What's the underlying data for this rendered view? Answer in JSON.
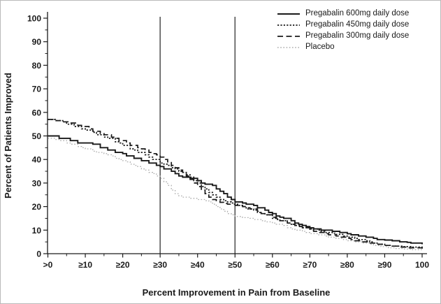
{
  "chart_data": {
    "type": "line",
    "subtype": "step-after-responder-curves",
    "title": "",
    "xlabel": "Percent Improvement in Pain from Baseline",
    "ylabel": "Percent of Patients Improved",
    "xlim": [
      0,
      100
    ],
    "ylim": [
      0,
      100
    ],
    "grid": "off",
    "legend_position": "top-right",
    "x_major_ticks": [
      0,
      10,
      20,
      30,
      40,
      50,
      60,
      70,
      80,
      90,
      100
    ],
    "x_minor_ticks": [
      5,
      15,
      25,
      35,
      45,
      55,
      65,
      75,
      85,
      95
    ],
    "x_tick_labels": [
      ">0",
      "≥10",
      "≥20",
      "≥30",
      "≥40",
      "≥50",
      "≥60",
      "≥70",
      "≥80",
      "≥90",
      "100"
    ],
    "y_major_ticks": [
      0,
      10,
      20,
      30,
      40,
      50,
      60,
      70,
      80,
      90,
      100
    ],
    "y_minor_ticks": [
      5,
      15,
      25,
      35,
      45,
      55,
      65,
      75,
      85,
      95
    ],
    "y_tick_labels": [
      "0",
      "10",
      "20",
      "30",
      "40",
      "50",
      "60",
      "70",
      "80",
      "90",
      "100"
    ],
    "reference_lines_x": [
      30,
      50
    ],
    "reference_line_color": "#4d4d4d",
    "series": [
      {
        "name": "Pregabalin 600mg daily dose",
        "style": "solid",
        "color": "#1a1a1a",
        "dash": "",
        "width": 1.9,
        "points": [
          [
            0,
            50
          ],
          [
            3,
            49
          ],
          [
            6,
            48
          ],
          [
            8,
            47
          ],
          [
            12,
            46.5
          ],
          [
            14,
            45
          ],
          [
            16,
            44
          ],
          [
            18,
            43
          ],
          [
            20,
            42.5
          ],
          [
            21,
            41.5
          ],
          [
            23,
            40.5
          ],
          [
            25,
            39.5
          ],
          [
            27,
            38.5
          ],
          [
            29,
            37.5
          ],
          [
            30,
            37
          ],
          [
            31,
            36
          ],
          [
            33,
            35
          ],
          [
            34,
            34
          ],
          [
            35,
            33
          ],
          [
            36,
            32.5
          ],
          [
            38,
            32
          ],
          [
            40,
            31
          ],
          [
            41,
            30
          ],
          [
            42,
            29.5
          ],
          [
            44,
            29
          ],
          [
            45,
            27.5
          ],
          [
            46,
            26.5
          ],
          [
            47,
            25.5
          ],
          [
            48,
            24
          ],
          [
            49,
            23
          ],
          [
            50,
            22
          ],
          [
            52,
            21.5
          ],
          [
            53,
            21
          ],
          [
            55,
            20.5
          ],
          [
            56,
            19.5
          ],
          [
            58,
            18.5
          ],
          [
            59,
            17.5
          ],
          [
            60,
            17
          ],
          [
            61,
            16
          ],
          [
            62,
            15.5
          ],
          [
            63,
            15
          ],
          [
            65,
            14
          ],
          [
            66,
            13
          ],
          [
            67,
            12.5
          ],
          [
            68,
            12
          ],
          [
            69,
            11.5
          ],
          [
            70,
            11
          ],
          [
            71,
            10.5
          ],
          [
            73,
            10
          ],
          [
            76,
            9.5
          ],
          [
            78,
            9
          ],
          [
            80,
            8.5
          ],
          [
            81,
            8
          ],
          [
            83,
            7.5
          ],
          [
            85,
            7
          ],
          [
            87,
            6.5
          ],
          [
            88,
            6
          ],
          [
            90,
            5.8
          ],
          [
            92,
            5.5
          ],
          [
            94,
            5
          ],
          [
            96,
            4.8
          ],
          [
            97,
            4.5
          ],
          [
            100,
            4
          ]
        ]
      },
      {
        "name": "Pregabalin 450mg daily dose",
        "style": "dotted",
        "color": "#1a1a1a",
        "dash": "2.2 2.2",
        "width": 1.7,
        "points": [
          [
            0,
            57
          ],
          [
            2,
            56.5
          ],
          [
            4,
            56
          ],
          [
            5,
            55
          ],
          [
            7,
            54
          ],
          [
            9,
            53
          ],
          [
            10,
            52.5
          ],
          [
            12,
            51.5
          ],
          [
            13,
            50.5
          ],
          [
            15,
            49.5
          ],
          [
            16,
            49
          ],
          [
            18,
            47.5
          ],
          [
            19,
            47
          ],
          [
            20,
            46
          ],
          [
            22,
            44.5
          ],
          [
            23,
            44
          ],
          [
            24,
            43
          ],
          [
            26,
            42
          ],
          [
            27,
            41
          ],
          [
            28,
            40
          ],
          [
            30,
            38.5
          ],
          [
            31,
            38
          ],
          [
            32,
            37.5
          ],
          [
            33,
            36.5
          ],
          [
            34,
            36
          ],
          [
            35,
            35
          ],
          [
            36,
            34.5
          ],
          [
            37,
            33.5
          ],
          [
            38,
            32.5
          ],
          [
            39,
            31
          ],
          [
            40,
            30
          ],
          [
            41,
            28.5
          ],
          [
            42,
            27.5
          ],
          [
            43,
            26
          ],
          [
            44,
            25
          ],
          [
            45,
            24
          ],
          [
            46,
            23
          ],
          [
            47,
            22.5
          ],
          [
            48,
            22
          ],
          [
            49,
            21.5
          ],
          [
            50,
            21
          ],
          [
            51,
            20.5
          ],
          [
            52,
            20
          ],
          [
            53,
            19
          ],
          [
            55,
            18.5
          ],
          [
            56,
            17.5
          ],
          [
            57,
            17
          ],
          [
            58,
            16.5
          ],
          [
            60,
            15
          ],
          [
            61,
            14.5
          ],
          [
            62,
            14
          ],
          [
            64,
            13
          ],
          [
            65,
            12.5
          ],
          [
            66,
            12
          ],
          [
            68,
            11
          ],
          [
            70,
            10.5
          ],
          [
            72,
            10
          ],
          [
            73,
            9.5
          ],
          [
            74,
            9
          ],
          [
            76,
            8.7
          ],
          [
            77,
            8.2
          ],
          [
            79,
            7.5
          ],
          [
            80,
            7
          ],
          [
            82,
            6.5
          ],
          [
            83,
            6
          ],
          [
            85,
            5.5
          ],
          [
            86,
            5
          ],
          [
            87,
            4.5
          ],
          [
            88,
            4
          ],
          [
            90,
            3.5
          ],
          [
            92,
            3.2
          ],
          [
            95,
            3
          ],
          [
            97,
            2.8
          ],
          [
            100,
            2.5
          ]
        ]
      },
      {
        "name": "Pregabalin 300mg daily dose",
        "style": "dashed",
        "color": "#1a1a1a",
        "dash": "8 4.5",
        "width": 1.7,
        "points": [
          [
            0,
            57
          ],
          [
            2,
            56.5
          ],
          [
            4,
            56
          ],
          [
            6,
            55.5
          ],
          [
            8,
            54.5
          ],
          [
            9,
            54
          ],
          [
            11,
            53
          ],
          [
            12,
            52
          ],
          [
            14,
            51
          ],
          [
            15,
            50.5
          ],
          [
            17,
            49.5
          ],
          [
            18,
            49
          ],
          [
            19,
            48
          ],
          [
            21,
            47
          ],
          [
            22,
            46
          ],
          [
            24,
            45
          ],
          [
            25,
            44.5
          ],
          [
            26,
            44
          ],
          [
            27,
            43
          ],
          [
            28,
            42.5
          ],
          [
            29,
            42
          ],
          [
            30,
            41
          ],
          [
            31,
            40
          ],
          [
            32,
            39
          ],
          [
            33,
            37.5
          ],
          [
            34,
            36.5
          ],
          [
            35,
            35.5
          ],
          [
            36,
            34.5
          ],
          [
            37,
            33
          ],
          [
            38,
            31.5
          ],
          [
            39,
            30
          ],
          [
            40,
            28.5
          ],
          [
            41,
            27
          ],
          [
            42,
            25.5
          ],
          [
            43,
            24
          ],
          [
            44,
            23
          ],
          [
            45,
            22.5
          ],
          [
            46,
            21.8
          ],
          [
            47,
            21.3
          ],
          [
            48,
            21
          ],
          [
            50,
            20.5
          ],
          [
            52,
            20
          ],
          [
            53,
            19.5
          ],
          [
            54,
            19
          ],
          [
            56,
            18
          ],
          [
            57,
            17
          ],
          [
            58,
            16.5
          ],
          [
            60,
            15.5
          ],
          [
            61,
            15
          ],
          [
            62,
            14
          ],
          [
            64,
            13
          ],
          [
            65,
            12.5
          ],
          [
            66,
            12
          ],
          [
            67,
            11.5
          ],
          [
            68,
            11
          ],
          [
            70,
            10
          ],
          [
            71,
            9.5
          ],
          [
            72,
            9
          ],
          [
            74,
            8.5
          ],
          [
            75,
            8
          ],
          [
            77,
            7.5
          ],
          [
            78,
            7
          ],
          [
            80,
            6.5
          ],
          [
            81,
            6
          ],
          [
            82,
            5.5
          ],
          [
            84,
            5
          ],
          [
            86,
            4.5
          ],
          [
            88,
            4
          ],
          [
            90,
            3.5
          ],
          [
            92,
            3.2
          ],
          [
            94,
            2.8
          ],
          [
            96,
            2.5
          ],
          [
            100,
            2
          ]
        ]
      },
      {
        "name": "Placebo",
        "style": "dotted",
        "color": "#ababab",
        "dash": "1.6 2.6",
        "width": 1.3,
        "points": [
          [
            0,
            49
          ],
          [
            2,
            48.5
          ],
          [
            3,
            48
          ],
          [
            5,
            47
          ],
          [
            6,
            46.5
          ],
          [
            8,
            45.5
          ],
          [
            9,
            45
          ],
          [
            10,
            44.5
          ],
          [
            12,
            43.5
          ],
          [
            13,
            43
          ],
          [
            15,
            42.5
          ],
          [
            16,
            42
          ],
          [
            17,
            41.5
          ],
          [
            18,
            40.5
          ],
          [
            19,
            40
          ],
          [
            20,
            39.5
          ],
          [
            21,
            39
          ],
          [
            22,
            38
          ],
          [
            23,
            37.5
          ],
          [
            24,
            37
          ],
          [
            25,
            36
          ],
          [
            26,
            35.5
          ],
          [
            27,
            34.5
          ],
          [
            28,
            34
          ],
          [
            29,
            33
          ],
          [
            30,
            32
          ],
          [
            31,
            30.5
          ],
          [
            32,
            29
          ],
          [
            33,
            27
          ],
          [
            34,
            25.5
          ],
          [
            35,
            24.5
          ],
          [
            36,
            24
          ],
          [
            38,
            23.5
          ],
          [
            40,
            23
          ],
          [
            42,
            22.5
          ],
          [
            43,
            22
          ],
          [
            44,
            21
          ],
          [
            45,
            20
          ],
          [
            46,
            19
          ],
          [
            47,
            18
          ],
          [
            48,
            17
          ],
          [
            49,
            16.5
          ],
          [
            50,
            15.8
          ],
          [
            52,
            15.3
          ],
          [
            54,
            15
          ],
          [
            55,
            14.5
          ],
          [
            57,
            14
          ],
          [
            58,
            13.5
          ],
          [
            60,
            13
          ],
          [
            61,
            12.5
          ],
          [
            63,
            12
          ],
          [
            64,
            11
          ],
          [
            65,
            10.5
          ],
          [
            66,
            10
          ],
          [
            68,
            9.5
          ],
          [
            69,
            9
          ],
          [
            70,
            8.5
          ],
          [
            72,
            8
          ],
          [
            74,
            7.5
          ],
          [
            75,
            7
          ],
          [
            77,
            6.5
          ],
          [
            79,
            6
          ],
          [
            80,
            5.5
          ],
          [
            82,
            5
          ],
          [
            84,
            4.5
          ],
          [
            86,
            4
          ],
          [
            87,
            3.5
          ],
          [
            89,
            3
          ],
          [
            91,
            2.5
          ],
          [
            93,
            2.2
          ],
          [
            95,
            2
          ],
          [
            97,
            1.7
          ],
          [
            100,
            1.5
          ]
        ]
      }
    ],
    "key_values": {
      "at_ge30": {
        "Pregabalin 300mg": 41,
        "Pregabalin 450mg": 38.5,
        "Pregabalin 600mg": 37,
        "Placebo": 32
      },
      "at_ge50": {
        "Pregabalin 600mg": 22,
        "Pregabalin 450mg": 21,
        "Pregabalin 300mg": 20.5,
        "Placebo": 15.8
      }
    }
  }
}
